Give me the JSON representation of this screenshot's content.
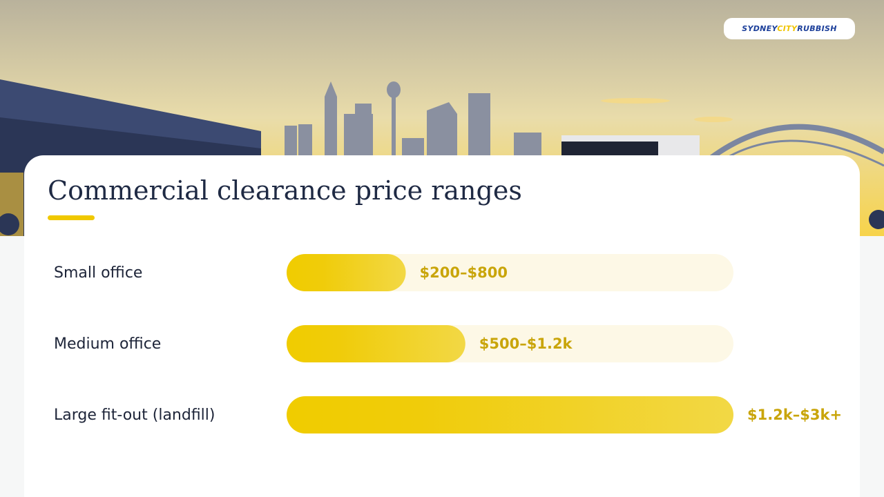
{
  "brand": [
    "SYDNEY",
    "CITY",
    "RUBBISH"
  ],
  "chart_data": {
    "type": "bar",
    "orientation": "horizontal",
    "title": "Commercial clearance price ranges",
    "categories": [
      "Small office",
      "Medium office",
      "Large fit-out (landfill)"
    ],
    "values": [
      800,
      1200,
      3000
    ],
    "value_labels": [
      "$200–$800",
      "$500–$1.2k",
      "$1.2k–$3k+"
    ],
    "xlim": [
      0,
      3000
    ],
    "color": "#f0cc00"
  }
}
